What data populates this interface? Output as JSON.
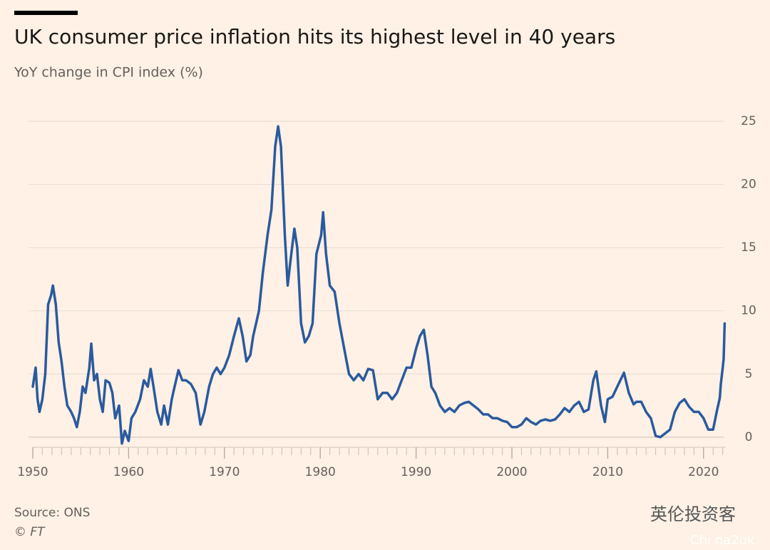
{
  "chart_data": {
    "type": "line",
    "title": "UK consumer price inflation hits its highest level in 40 years",
    "subtitle": "YoY change in CPI index (%)",
    "source": "Source: ONS",
    "credit": "© FT",
    "watermark": "英伦投资客",
    "watermark_sub": "Chi na2uk",
    "xlim": [
      1950,
      2022.3
    ],
    "xticks": [
      1950,
      1960,
      1970,
      1980,
      1990,
      2000,
      2010,
      2020
    ],
    "xminorticks": [
      1950,
      1951,
      1952,
      1953,
      1954,
      1955,
      1956,
      1957,
      1958,
      1959,
      1960,
      1961,
      1962,
      1963,
      1964,
      1965,
      1966,
      1967,
      1968,
      1969,
      1970,
      1971,
      1972,
      1973,
      1974,
      1975,
      1976,
      1977,
      1978,
      1979,
      1980,
      1981,
      1982,
      1983,
      1984,
      1985,
      1986,
      1987,
      1988,
      1989,
      1990,
      1991,
      1992,
      1993,
      1994,
      1995,
      1996,
      1997,
      1998,
      1999,
      2000,
      2001,
      2002,
      2003,
      2004,
      2005,
      2006,
      2007,
      2008,
      2009,
      2010,
      2011,
      2012,
      2013,
      2014,
      2015,
      2016,
      2017,
      2018,
      2019,
      2020,
      2021,
      2022
    ],
    "ylim": [
      -0.8,
      25
    ],
    "yticks": [
      0,
      5,
      10,
      15,
      20,
      25
    ],
    "grid": true,
    "x": [
      1950,
      1950.3,
      1950.5,
      1950.7,
      1951,
      1951.3,
      1951.6,
      1951.9,
      1952.1,
      1952.4,
      1952.7,
      1953,
      1953.3,
      1953.6,
      1954,
      1954.3,
      1954.6,
      1954.9,
      1955.2,
      1955.5,
      1955.9,
      1956.1,
      1956.4,
      1956.7,
      1957,
      1957.3,
      1957.6,
      1958,
      1958.3,
      1958.6,
      1959,
      1959.3,
      1959.6,
      1960,
      1960.3,
      1960.7,
      1961.2,
      1961.6,
      1962,
      1962.3,
      1962.6,
      1963,
      1963.4,
      1963.7,
      1964.1,
      1964.5,
      1964.8,
      1965.2,
      1965.6,
      1966,
      1966.5,
      1967,
      1967.5,
      1967.9,
      1968.4,
      1968.8,
      1969.2,
      1969.6,
      1970,
      1970.5,
      1971,
      1971.5,
      1971.9,
      1972.3,
      1972.7,
      1973,
      1973.3,
      1973.6,
      1974,
      1974.5,
      1974.9,
      1975.3,
      1975.6,
      1975.9,
      1976.3,
      1976.6,
      1976.9,
      1977.3,
      1977.6,
      1978,
      1978.4,
      1978.8,
      1979.2,
      1979.6,
      1980.1,
      1980.3,
      1980.6,
      1981,
      1981.5,
      1982,
      1982.5,
      1983,
      1983.5,
      1984,
      1984.5,
      1985,
      1985.5,
      1986,
      1986.5,
      1987,
      1987.5,
      1988,
      1988.5,
      1989,
      1989.5,
      1990,
      1990.4,
      1990.8,
      1991.2,
      1991.6,
      1992,
      1992.5,
      1993,
      1993.5,
      1994,
      1994.5,
      1995,
      1995.5,
      1996,
      1996.5,
      1997,
      1997.5,
      1998,
      1998.5,
      1999,
      1999.5,
      2000,
      2000.5,
      2001,
      2001.5,
      2002,
      2002.5,
      2003,
      2003.5,
      2004,
      2004.5,
      2005,
      2005.5,
      2006,
      2006.5,
      2007,
      2007.5,
      2008,
      2008.5,
      2008.8,
      2009.3,
      2009.7,
      2010,
      2010.5,
      2011,
      2011.7,
      2012.2,
      2012.7,
      2013,
      2013.5,
      2014,
      2014.5,
      2015,
      2015.5,
      2016,
      2016.5,
      2017,
      2017.5,
      2018,
      2018.5,
      2019,
      2019.5,
      2020,
      2020.5,
      2021,
      2021.4,
      2021.7,
      2021.8,
      2022,
      2022.1,
      2022.2
    ],
    "series": [
      {
        "name": "CPI",
        "color": "#2a5a9e",
        "values": [
          4.0,
          5.5,
          3.0,
          2.0,
          3.0,
          5.0,
          10.5,
          11.2,
          12.0,
          10.5,
          7.5,
          6.0,
          4.0,
          2.5,
          2.0,
          1.5,
          0.8,
          2.0,
          4.0,
          3.5,
          5.5,
          7.4,
          4.5,
          5.0,
          3.0,
          2.0,
          4.5,
          4.3,
          3.5,
          1.5,
          2.5,
          -0.5,
          0.5,
          -0.3,
          1.5,
          2.0,
          3.0,
          4.5,
          4.0,
          5.4,
          4.0,
          2.0,
          1.0,
          2.5,
          1.0,
          3.0,
          4.0,
          5.3,
          4.5,
          4.5,
          4.2,
          3.5,
          1.0,
          2.0,
          4.0,
          5.0,
          5.5,
          5.0,
          5.5,
          6.5,
          8.0,
          9.4,
          8.0,
          6.0,
          6.5,
          8.0,
          9.0,
          10.0,
          13.0,
          16.0,
          18.0,
          23.0,
          24.6,
          23.0,
          16.0,
          12.0,
          14.0,
          16.5,
          15.0,
          9.0,
          7.5,
          8.0,
          9.0,
          14.5,
          16.0,
          17.8,
          14.5,
          12.0,
          11.5,
          9.0,
          7.0,
          5.0,
          4.5,
          5.0,
          4.5,
          5.4,
          5.3,
          3.0,
          3.5,
          3.5,
          3.0,
          3.5,
          4.5,
          5.5,
          5.5,
          7.0,
          8.0,
          8.5,
          6.5,
          4.0,
          3.5,
          2.5,
          2.0,
          2.3,
          2.0,
          2.5,
          2.7,
          2.8,
          2.5,
          2.2,
          1.8,
          1.8,
          1.5,
          1.5,
          1.3,
          1.2,
          0.8,
          0.8,
          1.0,
          1.5,
          1.2,
          1.0,
          1.3,
          1.4,
          1.3,
          1.4,
          1.8,
          2.3,
          2.0,
          2.5,
          2.8,
          2.0,
          2.2,
          4.5,
          5.2,
          2.5,
          1.2,
          3.0,
          3.2,
          4.0,
          5.1,
          3.5,
          2.6,
          2.8,
          2.8,
          2.0,
          1.5,
          0.1,
          0.0,
          0.3,
          0.6,
          2.0,
          2.7,
          3.0,
          2.4,
          2.0,
          2.0,
          1.5,
          0.6,
          0.6,
          2.1,
          3.1,
          4.2,
          5.5,
          6.2,
          9.0
        ]
      }
    ]
  }
}
